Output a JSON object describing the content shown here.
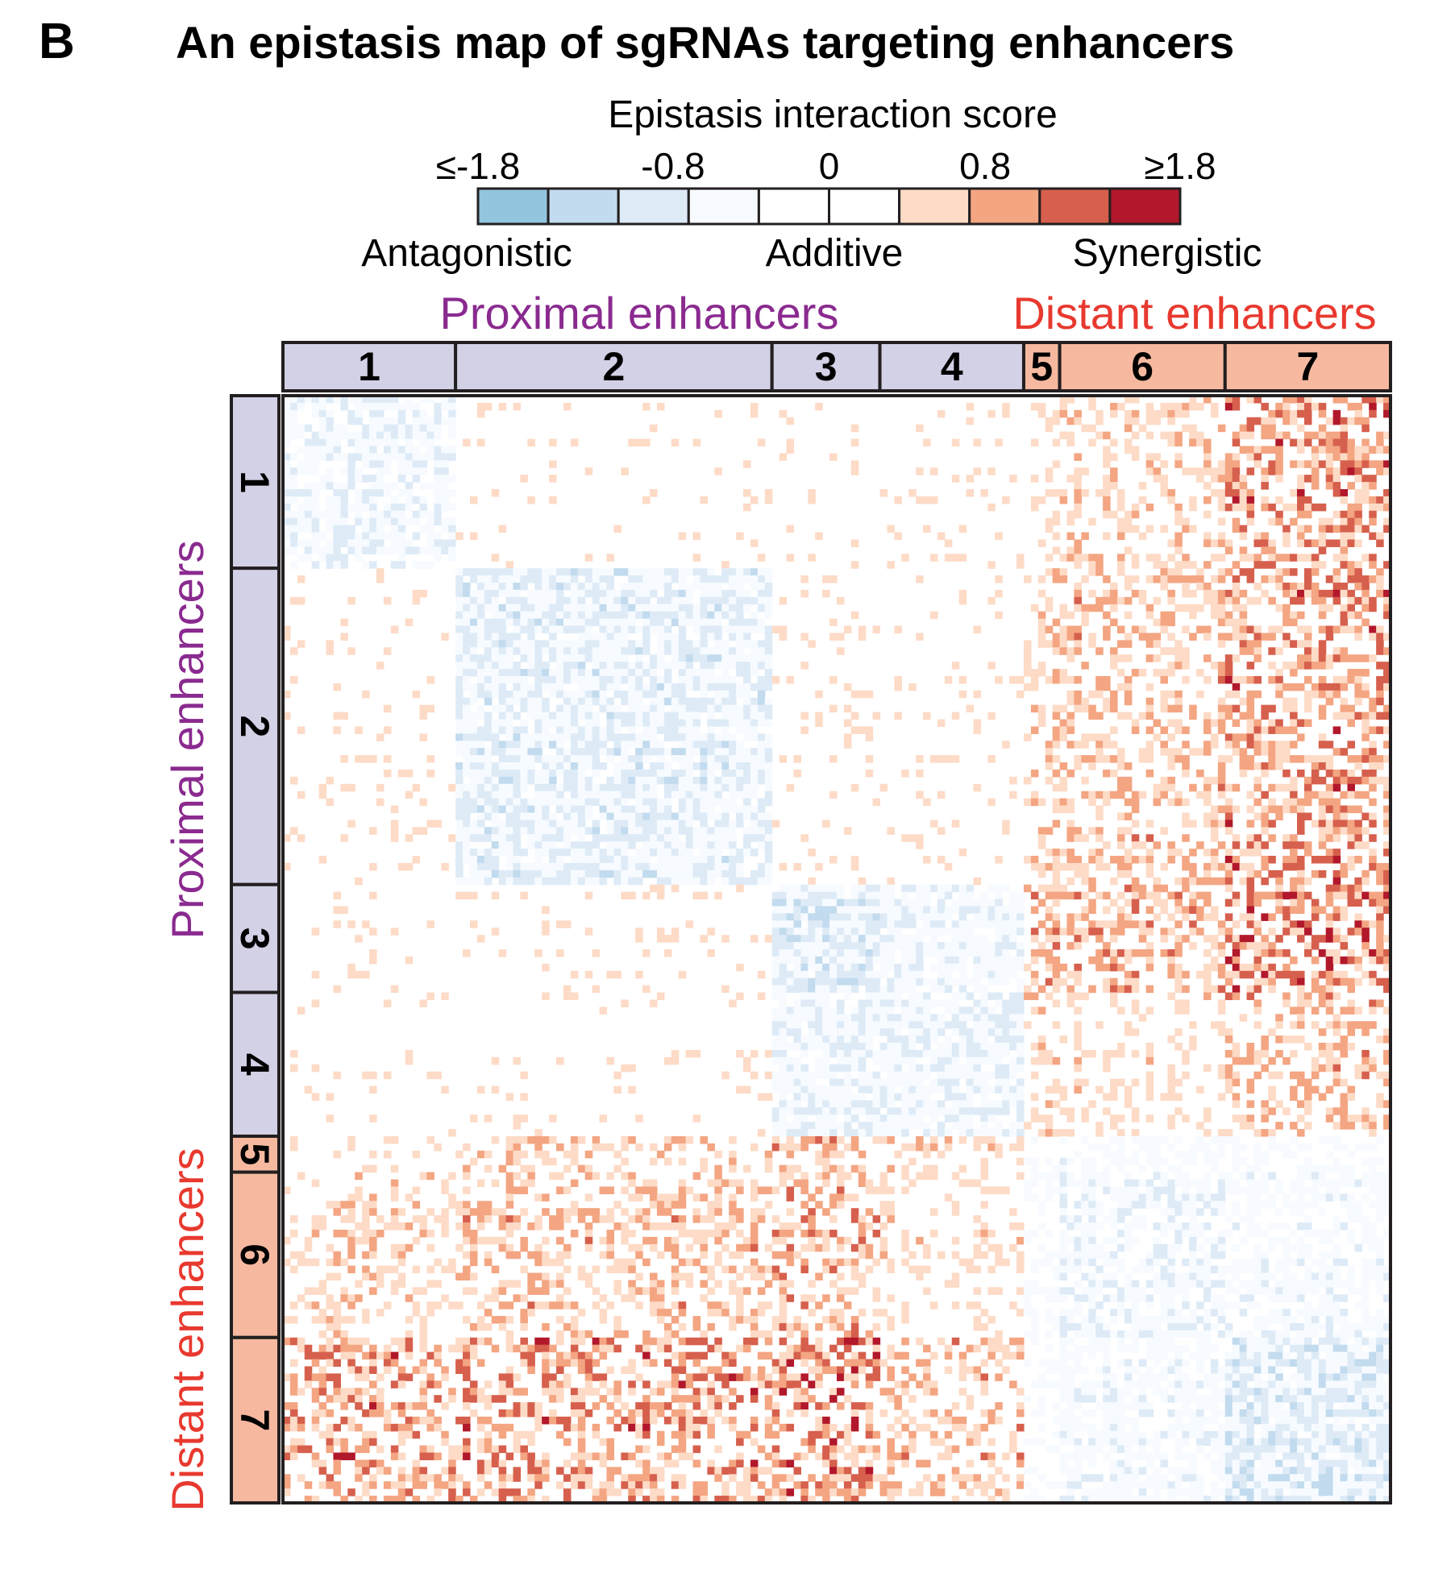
{
  "panel_label": "B",
  "title": "An epistasis map of sgRNAs targeting enhancers",
  "colors": {
    "proximal_text": "#8a2a8f",
    "distant_text": "#e8392f",
    "proximal_band": "#d3d1e6",
    "distant_band": "#f6b9a0",
    "border": "#231f20"
  },
  "chart_data": {
    "type": "heatmap",
    "title": "An epistasis map of sgRNAs targeting enhancers",
    "grid": false,
    "legend": {
      "title": "Epistasis interaction score",
      "position": "top",
      "tick_labels": [
        "≤-1.8",
        "-0.8",
        "0",
        "0.8",
        "≥1.8"
      ],
      "tick_values": [
        -1.8,
        -0.8,
        0,
        0.8,
        1.8
      ],
      "categories": [
        "Antagonistic",
        "Additive",
        "Synergistic"
      ],
      "bin_edges": [
        -1.8,
        -1.4,
        -1.0,
        -0.6,
        -0.2,
        0.2,
        0.6,
        1.0,
        1.4,
        1.8
      ],
      "bin_colors": [
        "#92c5de",
        "#c2dbee",
        "#deebf7",
        "#f7fbff",
        "#ffffff",
        "#ffffff",
        "#fddbc7",
        "#f4a582",
        "#d6604d",
        "#b2182b"
      ]
    },
    "groups": [
      {
        "name": "Proximal enhancers",
        "clusters": [
          "1",
          "2",
          "3",
          "4"
        ]
      },
      {
        "name": "Distant enhancers",
        "clusters": [
          "5",
          "6",
          "7"
        ]
      }
    ],
    "clusters": [
      {
        "label": "1",
        "group": "Proximal enhancers",
        "size": 24
      },
      {
        "label": "2",
        "group": "Proximal enhancers",
        "size": 44
      },
      {
        "label": "3",
        "group": "Proximal enhancers",
        "size": 15
      },
      {
        "label": "4",
        "group": "Proximal enhancers",
        "size": 20
      },
      {
        "label": "5",
        "group": "Distant enhancers",
        "size": 5
      },
      {
        "label": "6",
        "group": "Distant enhancers",
        "size": 23
      },
      {
        "label": "7",
        "group": "Distant enhancers",
        "size": 23
      }
    ],
    "block_mean_scores": [
      [
        -0.5,
        0.3,
        0.5,
        0.3,
        0.6,
        0.9,
        1.4
      ],
      [
        0.3,
        -0.7,
        0.3,
        0.3,
        0.9,
        1.0,
        1.4
      ],
      [
        0.5,
        0.3,
        -0.8,
        -0.4,
        1.2,
        1.2,
        1.6
      ],
      [
        0.3,
        0.3,
        -0.4,
        -0.6,
        0.9,
        0.7,
        1.1
      ],
      [
        0.6,
        0.9,
        1.2,
        0.9,
        0.0,
        -0.2,
        -0.1
      ],
      [
        0.9,
        1.0,
        1.2,
        0.7,
        -0.2,
        -0.5,
        -0.3
      ],
      [
        1.4,
        1.4,
        1.6,
        1.1,
        -0.1,
        -0.3,
        -0.8
      ]
    ]
  }
}
